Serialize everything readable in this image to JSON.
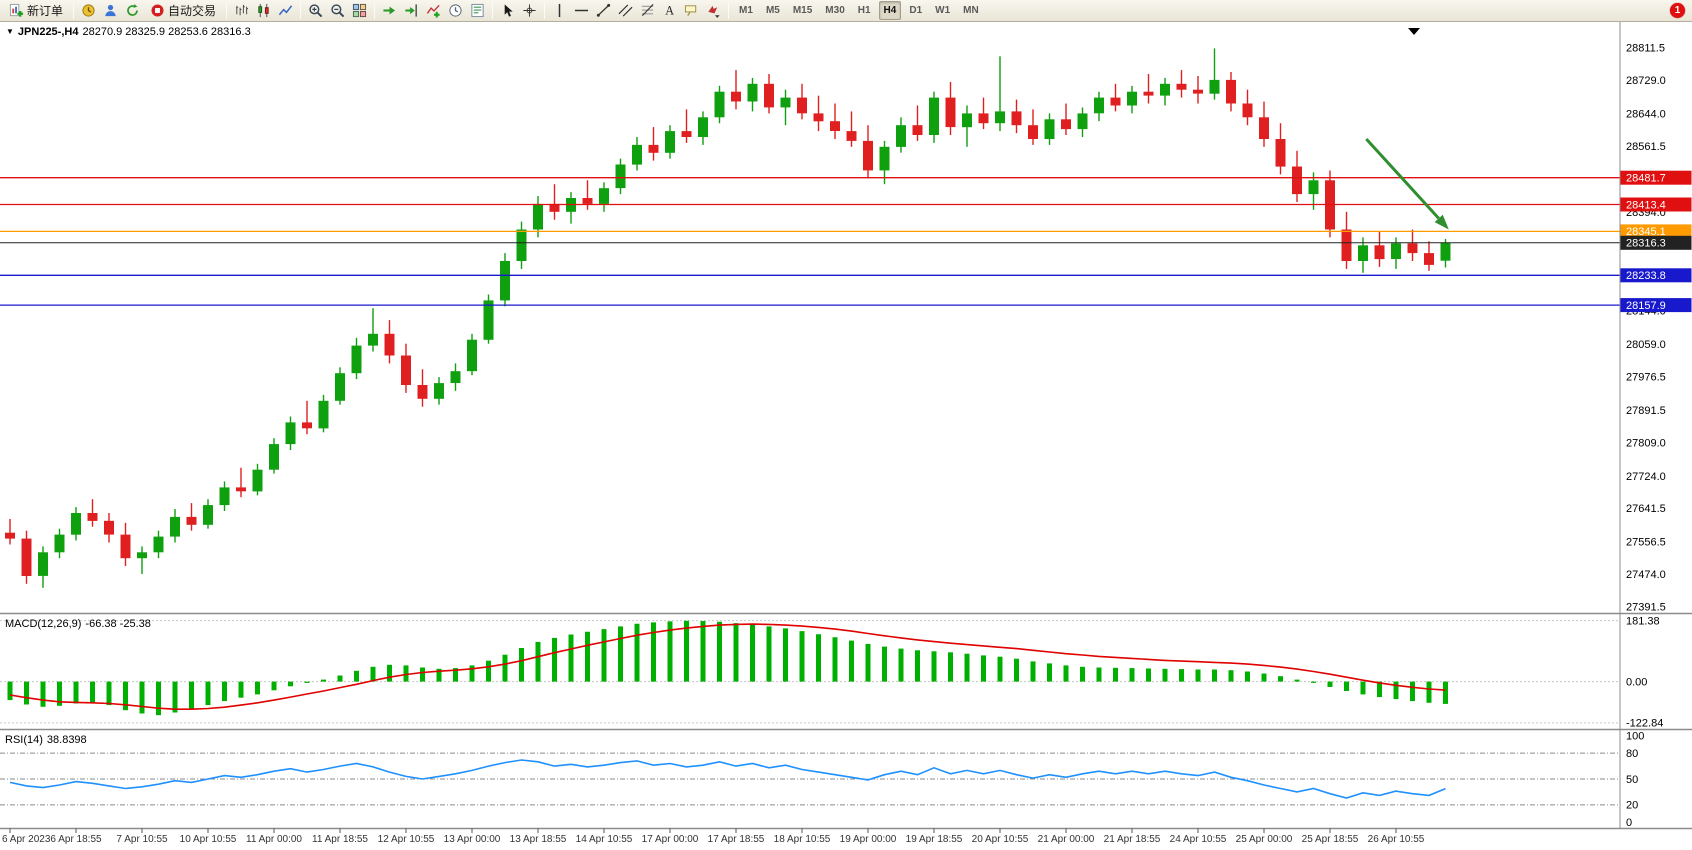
{
  "toolbar": {
    "items": [
      {
        "icon": "new-order",
        "label": "新订单"
      },
      {
        "sep": true
      },
      {
        "icon": "market-watch"
      },
      {
        "icon": "navigator"
      },
      {
        "icon": "refresh"
      },
      {
        "icon": "autotrading",
        "label": "自动交易"
      },
      {
        "sep": true
      },
      {
        "icon": "bar-chart"
      },
      {
        "icon": "candlestick-chart"
      },
      {
        "icon": "line-chart"
      },
      {
        "sep": true
      },
      {
        "icon": "zoom-in"
      },
      {
        "icon": "zoom-out"
      },
      {
        "icon": "tile-windows"
      },
      {
        "sep": true
      },
      {
        "icon": "auto-scroll"
      },
      {
        "icon": "chart-shift"
      },
      {
        "icon": "indicators"
      },
      {
        "icon": "periods"
      },
      {
        "icon": "templates"
      },
      {
        "sep": true
      },
      {
        "icon": "cursor"
      },
      {
        "icon": "crosshair"
      },
      {
        "sep": true
      },
      {
        "icon": "vertical-line"
      },
      {
        "icon": "horizontal-line"
      },
      {
        "icon": "trendline"
      },
      {
        "icon": "equidistant-channel"
      },
      {
        "icon": "fibonacci"
      },
      {
        "icon": "text"
      },
      {
        "icon": "text-label"
      },
      {
        "icon": "arrows"
      },
      {
        "sep": true
      }
    ],
    "timeframes": [
      "M1",
      "M5",
      "M15",
      "M30",
      "H1",
      "H4",
      "D1",
      "W1",
      "MN"
    ],
    "active_timeframe": "H4",
    "notification_count": "1"
  },
  "chart_data": {
    "type": "candlestick",
    "symbol_title": "JPN225-,H4",
    "ohlc_text": "28270.9 28325.9 28253.6 28316.3",
    "colors": {
      "up": "#0fa00f",
      "down": "#e02020",
      "macd_bar": "#00b000",
      "macd_signal": "#e00000",
      "rsi": "#1e90ff"
    },
    "price_axis": {
      "min": 27381,
      "max": 28872,
      "labels": [
        {
          "text": "28811.5",
          "value": 28811.5
        },
        {
          "text": "28729.0",
          "value": 28729.0
        },
        {
          "text": "28644.0",
          "value": 28644.0
        },
        {
          "text": "28561.5",
          "value": 28561.5
        },
        {
          "text": "28394.0",
          "value": 28394.0
        },
        {
          "text": "28144.0",
          "value": 28144.0
        },
        {
          "text": "28059.0",
          "value": 28059.0
        },
        {
          "text": "27976.5",
          "value": 27976.5
        },
        {
          "text": "27891.5",
          "value": 27891.5
        },
        {
          "text": "27809.0",
          "value": 27809.0
        },
        {
          "text": "27724.0",
          "value": 27724.0
        },
        {
          "text": "27641.5",
          "value": 27641.5
        },
        {
          "text": "27556.5",
          "value": 27556.5
        },
        {
          "text": "27474.0",
          "value": 27474.0
        },
        {
          "text": "27391.5",
          "value": 27391.5
        }
      ]
    },
    "hlines": [
      {
        "value": 28481.7,
        "label": "28481.7",
        "color": "#e01010"
      },
      {
        "value": 28413.4,
        "label": "28413.4",
        "color": "#e01010"
      },
      {
        "value": 28345.1,
        "label": "28345.1",
        "color": "#ff9a00"
      },
      {
        "value": 28316.3,
        "label": "28316.3",
        "color": "#222222",
        "role": "bid"
      },
      {
        "value": 28233.8,
        "label": "28233.8",
        "color": "#1818cc"
      },
      {
        "value": 28157.9,
        "label": "28157.9",
        "color": "#1818cc"
      }
    ],
    "tick_every": 4,
    "time_labels": [
      "6 Apr 2023",
      "6 Apr 18:55",
      "7 Apr 10:55",
      "10 Apr 10:55",
      "11 Apr 00:00",
      "11 Apr 18:55",
      "12 Apr 10:55",
      "13 Apr 00:00",
      "13 Apr 18:55",
      "14 Apr 10:55",
      "17 Apr 00:00",
      "17 Apr 18:55",
      "18 Apr 10:55",
      "19 Apr 00:00",
      "19 Apr 18:55",
      "20 Apr 10:55",
      "21 Apr 00:00",
      "21 Apr 18:55",
      "24 Apr 10:55",
      "25 Apr 00:00",
      "25 Apr 18:55",
      "26 Apr 10:55"
    ],
    "candles": [
      [
        27580,
        27615,
        27550,
        27565
      ],
      [
        27565,
        27585,
        27450,
        27470
      ],
      [
        27470,
        27545,
        27440,
        27530
      ],
      [
        27530,
        27590,
        27515,
        27575
      ],
      [
        27575,
        27645,
        27560,
        27630
      ],
      [
        27630,
        27665,
        27595,
        27610
      ],
      [
        27610,
        27630,
        27555,
        27575
      ],
      [
        27575,
        27605,
        27495,
        27515
      ],
      [
        27515,
        27545,
        27475,
        27530
      ],
      [
        27530,
        27585,
        27515,
        27570
      ],
      [
        27570,
        27640,
        27555,
        27620
      ],
      [
        27620,
        27655,
        27585,
        27600
      ],
      [
        27600,
        27665,
        27590,
        27650
      ],
      [
        27650,
        27710,
        27635,
        27695
      ],
      [
        27695,
        27745,
        27670,
        27685
      ],
      [
        27685,
        27755,
        27675,
        27740
      ],
      [
        27740,
        27820,
        27730,
        27805
      ],
      [
        27805,
        27875,
        27790,
        27860
      ],
      [
        27860,
        27915,
        27830,
        27845
      ],
      [
        27845,
        27930,
        27835,
        27915
      ],
      [
        27915,
        28000,
        27905,
        27985
      ],
      [
        27985,
        28075,
        27970,
        28055
      ],
      [
        28055,
        28150,
        28040,
        28085
      ],
      [
        28085,
        28120,
        28010,
        28030
      ],
      [
        28030,
        28060,
        27935,
        27955
      ],
      [
        27955,
        27995,
        27900,
        27920
      ],
      [
        27920,
        27975,
        27905,
        27960
      ],
      [
        27960,
        28010,
        27940,
        27990
      ],
      [
        27990,
        28085,
        27980,
        28070
      ],
      [
        28070,
        28185,
        28060,
        28170
      ],
      [
        28170,
        28290,
        28155,
        28270
      ],
      [
        28270,
        28370,
        28250,
        28350
      ],
      [
        28350,
        28435,
        28330,
        28415
      ],
      [
        28415,
        28465,
        28375,
        28395
      ],
      [
        28395,
        28445,
        28365,
        28430
      ],
      [
        28430,
        28475,
        28400,
        28415
      ],
      [
        28415,
        28470,
        28395,
        28455
      ],
      [
        28455,
        28530,
        28440,
        28515
      ],
      [
        28515,
        28585,
        28500,
        28565
      ],
      [
        28565,
        28610,
        28525,
        28545
      ],
      [
        28545,
        28615,
        28530,
        28600
      ],
      [
        28600,
        28655,
        28570,
        28585
      ],
      [
        28585,
        28650,
        28565,
        28635
      ],
      [
        28635,
        28715,
        28620,
        28700
      ],
      [
        28700,
        28755,
        28655,
        28675
      ],
      [
        28675,
        28735,
        28650,
        28720
      ],
      [
        28720,
        28745,
        28645,
        28660
      ],
      [
        28660,
        28705,
        28615,
        28685
      ],
      [
        28685,
        28720,
        28630,
        28645
      ],
      [
        28645,
        28690,
        28600,
        28625
      ],
      [
        28625,
        28670,
        28580,
        28600
      ],
      [
        28600,
        28650,
        28560,
        28575
      ],
      [
        28575,
        28615,
        28480,
        28500
      ],
      [
        28500,
        28575,
        28465,
        28560
      ],
      [
        28560,
        28635,
        28545,
        28615
      ],
      [
        28615,
        28665,
        28575,
        28590
      ],
      [
        28590,
        28700,
        28570,
        28685
      ],
      [
        28685,
        28725,
        28590,
        28610
      ],
      [
        28610,
        28665,
        28560,
        28645
      ],
      [
        28645,
        28685,
        28605,
        28620
      ],
      [
        28620,
        28790,
        28600,
        28650
      ],
      [
        28650,
        28680,
        28595,
        28615
      ],
      [
        28615,
        28655,
        28565,
        28580
      ],
      [
        28580,
        28645,
        28565,
        28630
      ],
      [
        28630,
        28670,
        28590,
        28605
      ],
      [
        28605,
        28660,
        28585,
        28645
      ],
      [
        28645,
        28700,
        28625,
        28685
      ],
      [
        28685,
        28720,
        28650,
        28665
      ],
      [
        28665,
        28715,
        28645,
        28700
      ],
      [
        28700,
        28745,
        28670,
        28690
      ],
      [
        28690,
        28735,
        28665,
        28720
      ],
      [
        28720,
        28755,
        28685,
        28705
      ],
      [
        28705,
        28740,
        28670,
        28695
      ],
      [
        28695,
        28810,
        28680,
        28730
      ],
      [
        28730,
        28750,
        28650,
        28670
      ],
      [
        28670,
        28705,
        28615,
        28635
      ],
      [
        28635,
        28675,
        28560,
        28580
      ],
      [
        28580,
        28620,
        28490,
        28510
      ],
      [
        28510,
        28550,
        28420,
        28440
      ],
      [
        28440,
        28495,
        28400,
        28475
      ],
      [
        28475,
        28500,
        28330,
        28350
      ],
      [
        28350,
        28395,
        28250,
        28270
      ],
      [
        28270,
        28330,
        28240,
        28310
      ],
      [
        28310,
        28345,
        28255,
        28275
      ],
      [
        28275,
        28330,
        28250,
        28315
      ],
      [
        28315,
        28350,
        28270,
        28290
      ],
      [
        28290,
        28320,
        28245,
        28260
      ],
      [
        28270.9,
        28325.9,
        28253.6,
        28316.3
      ]
    ],
    "annotation_arrow": {
      "from_bar": 82.2,
      "from_price": 28580,
      "to_bar": 87.2,
      "to_price": 28350,
      "color": "#2f8f2f"
    },
    "macd": {
      "label": "MACD(12,26,9)",
      "values_text": "-66.38 -25.38",
      "range": [
        -135,
        195
      ],
      "axis_labels": [
        {
          "text": "181.38",
          "value": 181.38
        },
        {
          "text": "0.00",
          "value": 0
        },
        {
          "text": "-122.84",
          "value": -122.84
        }
      ],
      "hist": [
        -55,
        -68,
        -75,
        -72,
        -65,
        -62,
        -70,
        -85,
        -95,
        -100,
        -92,
        -82,
        -70,
        -58,
        -48,
        -38,
        -26,
        -14,
        -4,
        6,
        18,
        32,
        44,
        50,
        48,
        42,
        38,
        40,
        48,
        62,
        80,
        100,
        118,
        130,
        140,
        148,
        156,
        164,
        172,
        176,
        179,
        181,
        180,
        178,
        174,
        170,
        164,
        158,
        150,
        141,
        132,
        122,
        112,
        104,
        98,
        93,
        90,
        87,
        83,
        78,
        74,
        68,
        60,
        54,
        48,
        44,
        42,
        41,
        40,
        39,
        38,
        37,
        36,
        36,
        34,
        30,
        24,
        16,
        6,
        -4,
        -16,
        -28,
        -38,
        -46,
        -52,
        -58,
        -63,
        -66.38
      ],
      "signal": [
        -40,
        -48,
        -55,
        -60,
        -62,
        -63,
        -65,
        -69,
        -74,
        -79,
        -82,
        -82,
        -80,
        -76,
        -70,
        -63,
        -55,
        -46,
        -37,
        -28,
        -18,
        -8,
        3,
        13,
        21,
        27,
        31,
        34,
        38,
        44,
        52,
        62,
        74,
        86,
        97,
        108,
        118,
        128,
        138,
        146,
        153,
        159,
        164,
        168,
        170,
        171,
        170,
        168,
        165,
        161,
        156,
        150,
        143,
        136,
        130,
        124,
        119,
        114,
        110,
        106,
        102,
        98,
        93,
        88,
        83,
        79,
        75,
        72,
        69,
        66,
        63,
        61,
        59,
        57,
        55,
        52,
        48,
        43,
        37,
        30,
        22,
        13,
        4,
        -4,
        -11,
        -17,
        -22,
        -25.38
      ]
    },
    "rsi": {
      "label": "RSI(14)",
      "value_text": "38.8398",
      "range": [
        -4.5,
        104.5
      ],
      "levels": [
        80,
        50,
        20
      ],
      "axis_labels": [
        {
          "text": "100",
          "value": 100
        },
        {
          "text": "80",
          "value": 80
        },
        {
          "text": "50",
          "value": 50
        },
        {
          "text": "20",
          "value": 20
        },
        {
          "text": "0",
          "value": 0
        }
      ],
      "values": [
        46,
        42,
        40,
        43,
        47,
        45,
        42,
        39,
        41,
        44,
        48,
        46,
        50,
        54,
        52,
        55,
        59,
        62,
        58,
        61,
        65,
        68,
        64,
        58,
        53,
        50,
        53,
        56,
        60,
        65,
        69,
        72,
        70,
        65,
        67,
        64,
        66,
        69,
        71,
        66,
        68,
        64,
        66,
        70,
        65,
        68,
        63,
        66,
        61,
        58,
        55,
        52,
        49,
        55,
        59,
        55,
        63,
        56,
        60,
        56,
        60,
        55,
        51,
        55,
        52,
        56,
        59,
        56,
        59,
        56,
        59,
        56,
        54,
        58,
        52,
        48,
        43,
        39,
        35,
        39,
        33,
        28,
        34,
        31,
        36,
        33,
        31,
        38.84
      ]
    }
  }
}
